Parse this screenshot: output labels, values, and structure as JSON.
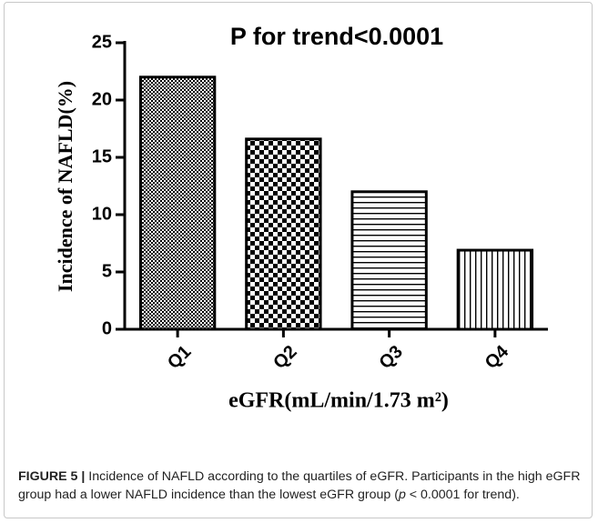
{
  "chart_data": {
    "type": "bar",
    "title": "P for trend<0.0001",
    "y_label": "Incidence of NAFLD(%)",
    "x_label": "eGFR(mL/min/1.73 m²)",
    "categories": [
      "Q1",
      "Q2",
      "Q3",
      "Q4"
    ],
    "values": [
      22,
      16.6,
      12,
      6.9
    ],
    "color": "#000000",
    "ylim": [
      0,
      25
    ],
    "yticks": [
      0,
      5,
      10,
      15,
      20,
      25
    ],
    "grid": false
  },
  "caption": {
    "label": "FIGURE 5 |",
    "text_before": " Incidence of NAFLD according to the quartiles of eGFR. Participants in the high eGFR group had a lower NAFLD incidence than the lowest eGFR group (",
    "italic": "p",
    "text_after": " < 0.0001 for trend)."
  }
}
